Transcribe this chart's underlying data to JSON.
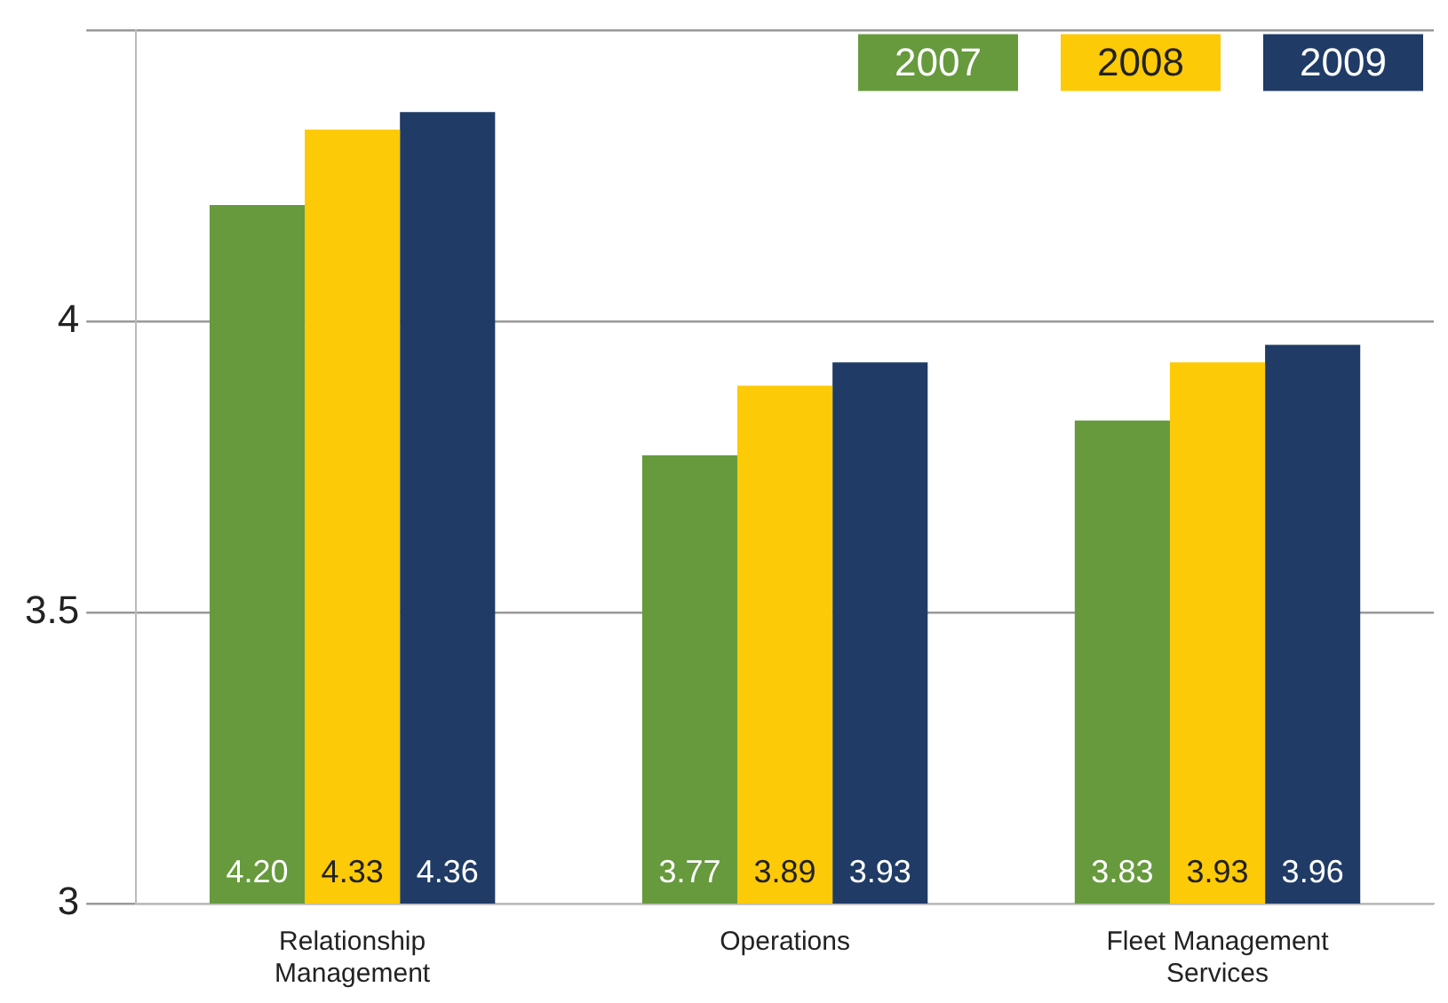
{
  "chart_data": {
    "type": "bar",
    "categories": [
      "Relationship Management",
      "Operations",
      "Fleet Management Services"
    ],
    "series": [
      {
        "name": "2007",
        "color": "#669a3d",
        "values": [
          4.2,
          3.77,
          3.83
        ],
        "value_labels": [
          "4.20",
          "3.77",
          "3.83"
        ]
      },
      {
        "name": "2008",
        "color": "#fdca07",
        "values": [
          4.33,
          3.89,
          3.93
        ],
        "value_labels": [
          "4.33",
          "3.89",
          "3.93"
        ]
      },
      {
        "name": "2009",
        "color": "#1f3b66",
        "values": [
          4.36,
          3.93,
          3.96
        ],
        "value_labels": [
          "4.36",
          "3.93",
          "3.96"
        ]
      }
    ],
    "ylim": [
      3,
      4.5
    ],
    "yticks": [
      3,
      3.5,
      4,
      {
        "value": 4.5,
        "label": null
      }
    ],
    "grid": "y",
    "legend": "top right"
  }
}
